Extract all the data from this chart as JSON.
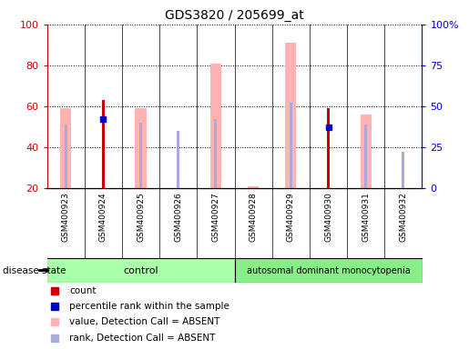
{
  "title": "GDS3820 / 205699_at",
  "samples": [
    "GSM400923",
    "GSM400924",
    "GSM400925",
    "GSM400926",
    "GSM400927",
    "GSM400928",
    "GSM400929",
    "GSM400930",
    "GSM400931",
    "GSM400932"
  ],
  "value_absent": [
    59,
    0,
    59,
    0,
    81,
    21,
    91,
    0,
    56,
    0
  ],
  "rank_absent": [
    51,
    52,
    52,
    48,
    54,
    0,
    62,
    50,
    51,
    38
  ],
  "count": [
    0,
    63,
    0,
    0,
    0,
    0,
    0,
    59,
    0,
    0
  ],
  "percentile": [
    0,
    54,
    0,
    0,
    0,
    0,
    0,
    50,
    0,
    0
  ],
  "ylim": [
    20,
    100
  ],
  "yticks_left": [
    20,
    40,
    60,
    80,
    100
  ],
  "yticks_right": [
    0,
    25,
    50,
    75,
    100
  ],
  "color_count": "#cc0000",
  "color_percentile": "#0000cc",
  "color_value": "#ffb3b3",
  "color_rank": "#aaaadd",
  "color_ctrl": "#aaffaa",
  "color_dis": "#88ee88",
  "left_axis_color": "#cc0000",
  "right_axis_color": "#0000cc",
  "title_fontsize": 10,
  "n_control": 5,
  "n_disease": 5
}
